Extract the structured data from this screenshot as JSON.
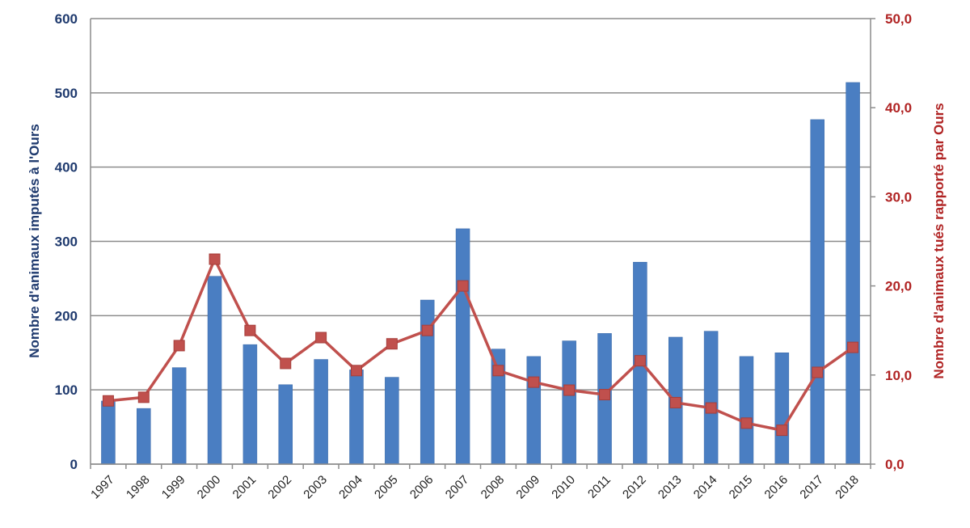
{
  "chart_data": {
    "type": "bar",
    "title": "",
    "categories": [
      "1997",
      "1998",
      "1999",
      "2000",
      "2001",
      "2002",
      "2003",
      "2004",
      "2005",
      "2006",
      "2007",
      "2008",
      "2009",
      "2010",
      "2011",
      "2012",
      "2013",
      "2014",
      "2015",
      "2016",
      "2017",
      "2018"
    ],
    "y_left": {
      "label": "Nombre d'animaux imputés à l'Ours",
      "range": [
        0,
        600
      ],
      "ticks": [
        "0",
        "100",
        "200",
        "300",
        "400",
        "500",
        "600"
      ],
      "color": "#1f3a6e"
    },
    "y_right": {
      "label": "Nombre d'animaux tués rapporté par Ours",
      "range": [
        0,
        50
      ],
      "ticks": [
        "0,0",
        "10,0",
        "20,0",
        "30,0",
        "40,0",
        "50,0"
      ],
      "color": "#b02323"
    },
    "grid": true,
    "legend": "none",
    "series": [
      {
        "type": "bar",
        "axis": "left",
        "color": "#4a7ec2",
        "values": [
          85,
          75,
          130,
          253,
          161,
          107,
          141,
          127,
          117,
          221,
          317,
          155,
          145,
          166,
          176,
          272,
          171,
          179,
          145,
          150,
          464,
          514
        ]
      },
      {
        "type": "line",
        "axis": "right",
        "color": "#c0504d",
        "marker": "square",
        "values": [
          7.1,
          7.5,
          13.3,
          23.0,
          15.0,
          11.3,
          14.2,
          10.5,
          13.5,
          15.0,
          20.0,
          10.5,
          9.2,
          8.3,
          7.8,
          11.6,
          6.9,
          6.3,
          4.6,
          3.8,
          10.3,
          13.1
        ]
      }
    ]
  }
}
